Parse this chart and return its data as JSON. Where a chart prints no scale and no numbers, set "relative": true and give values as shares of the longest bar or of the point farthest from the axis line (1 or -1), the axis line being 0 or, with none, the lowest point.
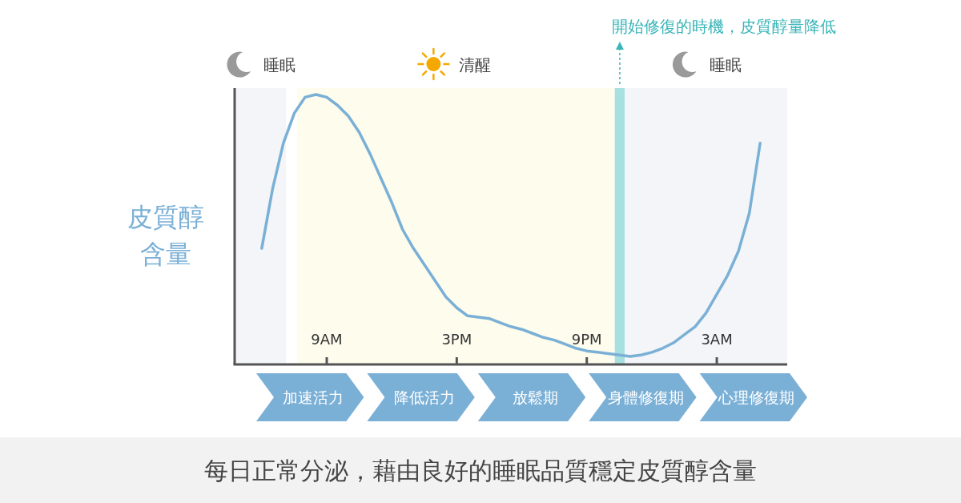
{
  "chart_data": {
    "type": "line",
    "relative": true,
    "ylabel": "皮質醇含量",
    "color": "#7ab0d6",
    "categories": [
      null,
      null,
      null,
      null,
      null,
      null,
      null,
      "9AM",
      null,
      null,
      null,
      null,
      null,
      null,
      null,
      null,
      null,
      null,
      null,
      "3PM",
      null,
      null,
      null,
      null,
      null,
      null,
      null,
      null,
      null,
      null,
      null,
      "9PM",
      null,
      null,
      null,
      null,
      null,
      null,
      null,
      null,
      null,
      null,
      null,
      "3AM",
      null,
      null,
      null,
      null,
      null
    ],
    "values": [
      null,
      0.43,
      0.65,
      0.82,
      0.93,
      0.99,
      1,
      0.99,
      0.96,
      0.92,
      0.86,
      0.78,
      0.69,
      0.6,
      0.5,
      0.43,
      0.37,
      0.31,
      0.25,
      0.21,
      0.18,
      0.175,
      0.17,
      0.155,
      0.14,
      0.13,
      0.115,
      0.1,
      0.09,
      0.075,
      0.06,
      0.05,
      0.045,
      0.04,
      0.035,
      0.03,
      0.035,
      0.045,
      0.06,
      0.08,
      0.11,
      0.14,
      0.19,
      0.26,
      0.33,
      0.42,
      0.56,
      0.82,
      null
    ],
    "annotations": [
      "睡眠",
      "清醒",
      "開始修復的時機，皮質醇量降低",
      "睡眠",
      "加速活力",
      "降低活力",
      "放鬆期",
      "身體修復期",
      "心理修復期",
      "每日正常分泌，藉由良好的睡眠品質穩定皮質醇含量"
    ]
  }
}
